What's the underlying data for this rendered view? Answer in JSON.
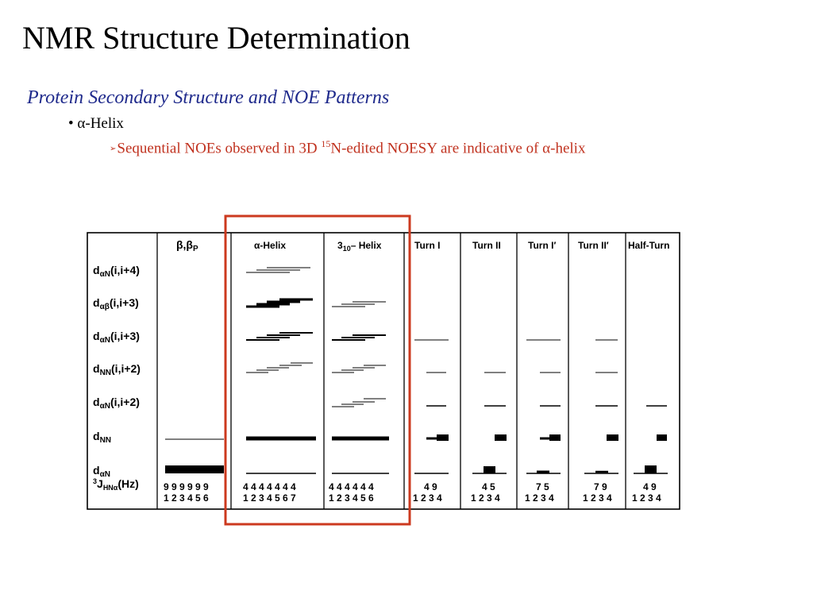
{
  "slide": {
    "title": "NMR Structure Determination",
    "subtitle": "Protein Secondary Structure and NOE Patterns",
    "bullet": {
      "symbol": "•",
      "greek": "α",
      "text": "-Helix"
    },
    "subbullet": {
      "arrow": "➢",
      "pre": "Sequential NOEs observed in 3D ",
      "sup": "15",
      "post": "N-edited NOESY are indicative of ",
      "greek": "α",
      "end": "-helix"
    }
  },
  "figure": {
    "columns": [
      {
        "label": "β,βP"
      },
      {
        "label": "α-Helix"
      },
      {
        "label": "310-Helix"
      },
      {
        "label": "Turn I"
      },
      {
        "label": "Turn II"
      },
      {
        "label": "Turn I′"
      },
      {
        "label": "Turn II′"
      },
      {
        "label": "Half-Turn"
      }
    ],
    "rows": [
      {
        "label": "dαN(i,i+4)"
      },
      {
        "label": "dαβ(i,i+3)"
      },
      {
        "label": "dαN(i,i+3)"
      },
      {
        "label": "dNN(i,i+2)"
      },
      {
        "label": "dαN(i,i+2)"
      },
      {
        "label": "dNN"
      },
      {
        "label": "dαN"
      },
      {
        "label": "3JHNα(Hz)"
      }
    ],
    "coupling": [
      {
        "values": "9 9 9 9 9 9",
        "residues": "1 2 3 4 5 6"
      },
      {
        "values": "4 4 4 4 4 4 4",
        "residues": "1 2 3 4 5 6 7"
      },
      {
        "values": "4 4 4 4 4 4",
        "residues": "1 2 3 4 5 6"
      },
      {
        "values": "4 9",
        "residues": "1 2 3 4"
      },
      {
        "values": "4 5",
        "residues": "1 2 3 4"
      },
      {
        "values": "7 5",
        "residues": "1 2 3 4"
      },
      {
        "values": "7 9",
        "residues": "1 2 3 4"
      },
      {
        "values": "4 9",
        "residues": "1 2 3 4"
      }
    ],
    "highlight_color": "#cc3a1f"
  }
}
